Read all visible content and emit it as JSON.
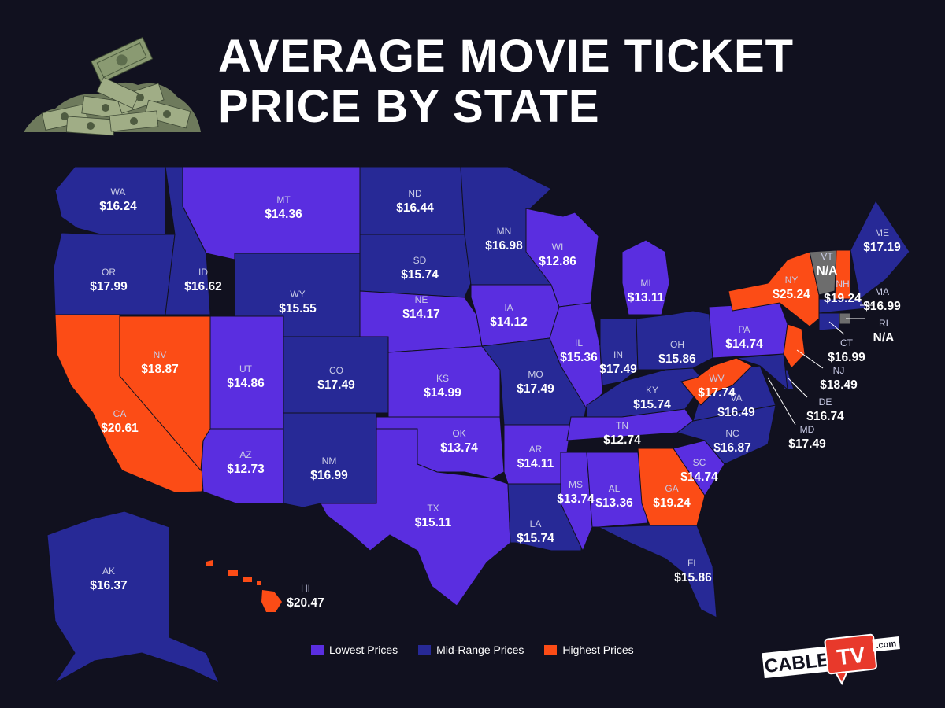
{
  "title": {
    "line1": "AVERAGE MOVIE TICKET",
    "line2": "PRICE BY STATE"
  },
  "colors": {
    "lowest": "#5a2ee0",
    "mid": "#272996",
    "highest": "#fc4c16",
    "na": "#6d6d6d",
    "background": "#11111f"
  },
  "legend": [
    {
      "label": "Lowest Prices",
      "color": "#5a2ee0"
    },
    {
      "label": "Mid-Range Prices",
      "color": "#272996"
    },
    {
      "label": "Highest Prices",
      "color": "#fc4c16"
    }
  ],
  "states": [
    {
      "abbr": "WA",
      "price": "$16.24",
      "tier": "mid"
    },
    {
      "abbr": "OR",
      "price": "$17.99",
      "tier": "mid"
    },
    {
      "abbr": "CA",
      "price": "$20.61",
      "tier": "highest"
    },
    {
      "abbr": "NV",
      "price": "$18.87",
      "tier": "highest"
    },
    {
      "abbr": "ID",
      "price": "$16.62",
      "tier": "mid"
    },
    {
      "abbr": "MT",
      "price": "$14.36",
      "tier": "lowest"
    },
    {
      "abbr": "WY",
      "price": "$15.55",
      "tier": "mid"
    },
    {
      "abbr": "UT",
      "price": "$14.86",
      "tier": "lowest"
    },
    {
      "abbr": "AZ",
      "price": "$12.73",
      "tier": "lowest"
    },
    {
      "abbr": "CO",
      "price": "$17.49",
      "tier": "mid"
    },
    {
      "abbr": "NM",
      "price": "$16.99",
      "tier": "mid"
    },
    {
      "abbr": "ND",
      "price": "$16.44",
      "tier": "mid"
    },
    {
      "abbr": "SD",
      "price": "$15.74",
      "tier": "mid"
    },
    {
      "abbr": "NE",
      "price": "$14.17",
      "tier": "lowest"
    },
    {
      "abbr": "KS",
      "price": "$14.99",
      "tier": "lowest"
    },
    {
      "abbr": "OK",
      "price": "$13.74",
      "tier": "lowest"
    },
    {
      "abbr": "TX",
      "price": "$15.11",
      "tier": "lowest"
    },
    {
      "abbr": "MN",
      "price": "$16.98",
      "tier": "mid"
    },
    {
      "abbr": "IA",
      "price": "$14.12",
      "tier": "lowest"
    },
    {
      "abbr": "MO",
      "price": "$17.49",
      "tier": "mid"
    },
    {
      "abbr": "AR",
      "price": "$14.11",
      "tier": "lowest"
    },
    {
      "abbr": "LA",
      "price": "$15.74",
      "tier": "mid"
    },
    {
      "abbr": "WI",
      "price": "$12.86",
      "tier": "lowest"
    },
    {
      "abbr": "IL",
      "price": "$15.36",
      "tier": "lowest"
    },
    {
      "abbr": "MI",
      "price": "$13.11",
      "tier": "lowest"
    },
    {
      "abbr": "IN",
      "price": "$17.49",
      "tier": "mid"
    },
    {
      "abbr": "OH",
      "price": "$15.86",
      "tier": "mid"
    },
    {
      "abbr": "KY",
      "price": "$15.74",
      "tier": "mid"
    },
    {
      "abbr": "TN",
      "price": "$12.74",
      "tier": "lowest"
    },
    {
      "abbr": "MS",
      "price": "$13.74",
      "tier": "lowest"
    },
    {
      "abbr": "AL",
      "price": "$13.36",
      "tier": "lowest"
    },
    {
      "abbr": "GA",
      "price": "$19.24",
      "tier": "highest"
    },
    {
      "abbr": "FL",
      "price": "$15.86",
      "tier": "mid"
    },
    {
      "abbr": "SC",
      "price": "$14.74",
      "tier": "lowest"
    },
    {
      "abbr": "NC",
      "price": "$16.87",
      "tier": "mid"
    },
    {
      "abbr": "VA",
      "price": "$16.49",
      "tier": "mid"
    },
    {
      "abbr": "WV",
      "price": "$17.74",
      "tier": "highest"
    },
    {
      "abbr": "PA",
      "price": "$14.74",
      "tier": "lowest"
    },
    {
      "abbr": "NY",
      "price": "$25.24",
      "tier": "highest"
    },
    {
      "abbr": "VT",
      "price": "N/A",
      "tier": "na"
    },
    {
      "abbr": "NH",
      "price": "$19.24",
      "tier": "highest"
    },
    {
      "abbr": "ME",
      "price": "$17.19",
      "tier": "mid"
    },
    {
      "abbr": "MA",
      "price": "$16.99",
      "tier": "mid"
    },
    {
      "abbr": "RI",
      "price": "N/A",
      "tier": "na"
    },
    {
      "abbr": "CT",
      "price": "$16.99",
      "tier": "mid"
    },
    {
      "abbr": "NJ",
      "price": "$18.49",
      "tier": "highest"
    },
    {
      "abbr": "DE",
      "price": "$16.74",
      "tier": "mid"
    },
    {
      "abbr": "MD",
      "price": "$17.49",
      "tier": "mid"
    },
    {
      "abbr": "AK",
      "price": "$16.37",
      "tier": "mid"
    },
    {
      "abbr": "HI",
      "price": "$20.47",
      "tier": "highest"
    }
  ],
  "logo": {
    "left": "CABLE",
    "right": "TV",
    "suffix": ".com"
  }
}
